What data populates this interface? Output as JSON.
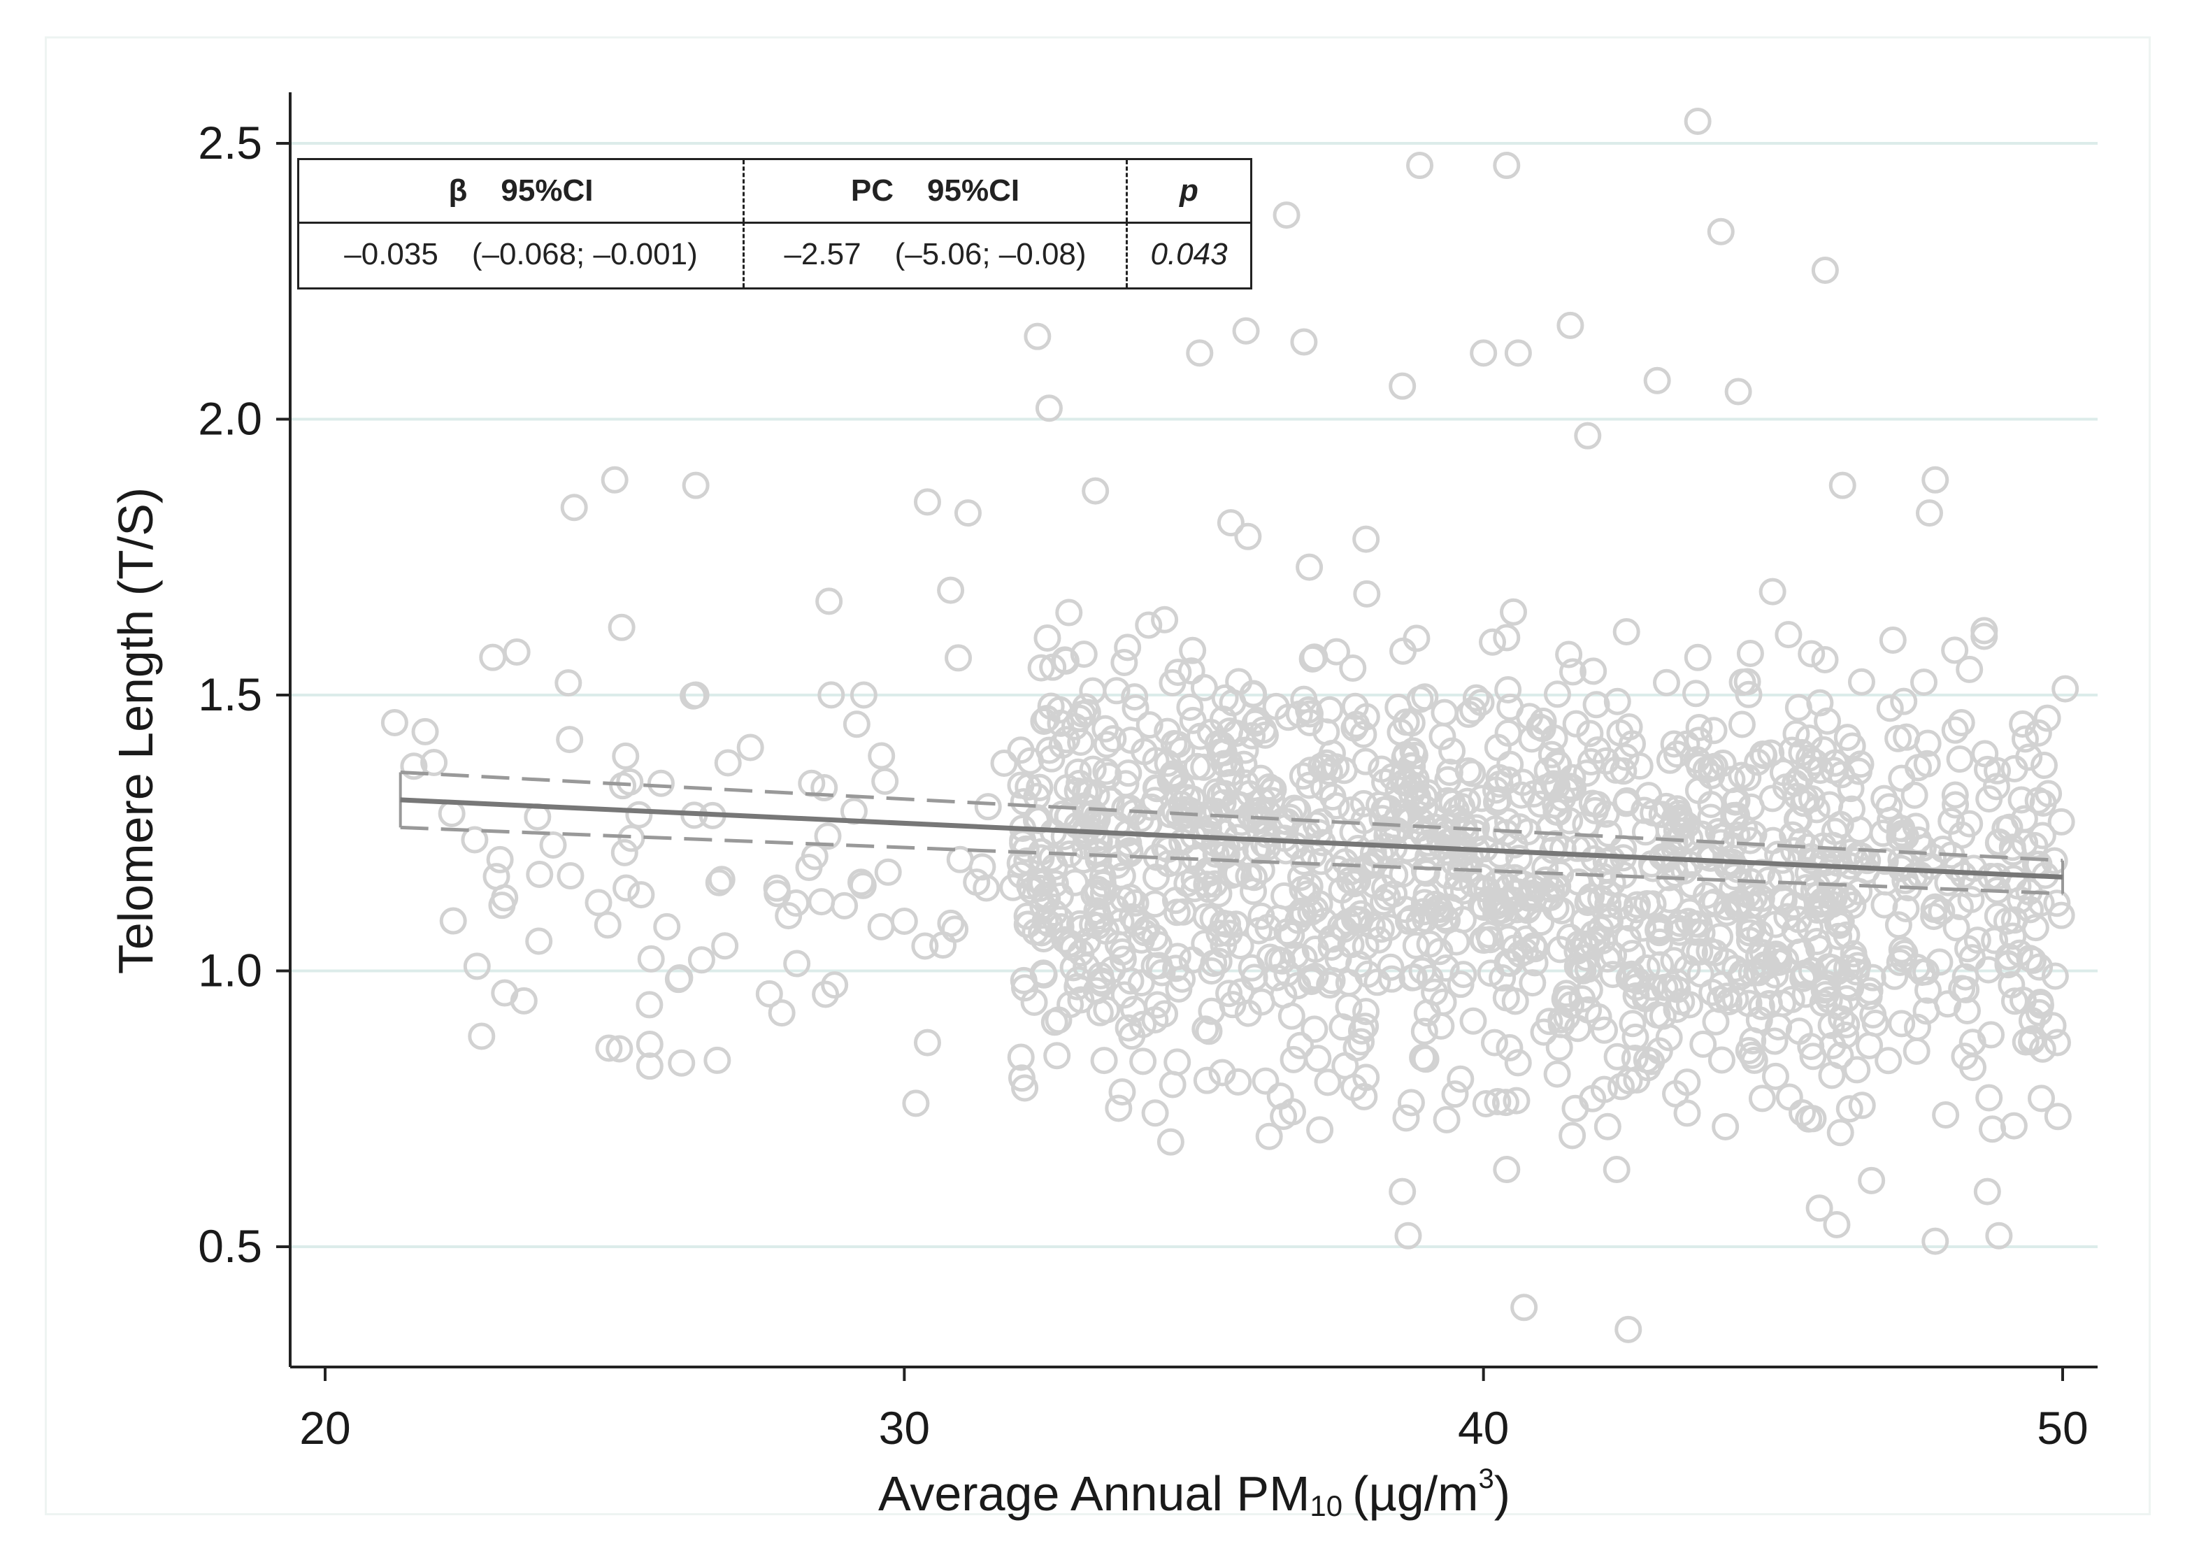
{
  "chart_data": {
    "type": "scatter",
    "title": "",
    "xlabel": "Average Annual PM",
    "xlabel_subscript": "10",
    "xlabel_unit": "(µg/m",
    "xlabel_superscript": "3",
    "xlabel_close": ")",
    "ylabel": "Telomere Length (T/S)",
    "xlim": [
      19.4,
      50.6
    ],
    "ylim": [
      0.3,
      2.6
    ],
    "x_ticks": [
      20,
      30,
      40,
      50
    ],
    "y_ticks": [
      0.5,
      1.0,
      1.5,
      2.0,
      2.5
    ],
    "x_tick_labels": [
      "20",
      "30",
      "40",
      "50"
    ],
    "y_tick_labels": [
      "0.5",
      "1.0",
      "1.5",
      "2.0",
      "2.5"
    ],
    "grid": true,
    "n_points_shown": 1500,
    "outlier_points": [
      {
        "x": 21.2,
        "y": 1.45
      },
      {
        "x": 23.1,
        "y": 0.96
      },
      {
        "x": 24.3,
        "y": 1.84
      },
      {
        "x": 24.9,
        "y": 0.86
      },
      {
        "x": 25.0,
        "y": 1.89
      },
      {
        "x": 25.8,
        "y": 1.34
      },
      {
        "x": 25.9,
        "y": 1.08
      },
      {
        "x": 26.4,
        "y": 1.88
      },
      {
        "x": 26.5,
        "y": 1.02
      },
      {
        "x": 26.4,
        "y": 1.5
      },
      {
        "x": 26.8,
        "y": 1.16
      },
      {
        "x": 27.8,
        "y": 1.15
      },
      {
        "x": 28.0,
        "y": 1.1
      },
      {
        "x": 28.4,
        "y": 1.34
      },
      {
        "x": 28.7,
        "y": 1.67
      },
      {
        "x": 29.3,
        "y": 1.5
      },
      {
        "x": 29.6,
        "y": 1.08
      },
      {
        "x": 30.0,
        "y": 1.09
      },
      {
        "x": 30.2,
        "y": 0.76
      },
      {
        "x": 30.4,
        "y": 0.87
      },
      {
        "x": 30.4,
        "y": 1.85
      },
      {
        "x": 30.8,
        "y": 1.69
      },
      {
        "x": 31.1,
        "y": 1.83
      },
      {
        "x": 32.3,
        "y": 2.15
      },
      {
        "x": 32.5,
        "y": 2.02
      },
      {
        "x": 33.3,
        "y": 1.87
      },
      {
        "x": 35.1,
        "y": 2.12
      },
      {
        "x": 35.9,
        "y": 2.16
      },
      {
        "x": 36.6,
        "y": 2.37
      },
      {
        "x": 36.9,
        "y": 2.14
      },
      {
        "x": 38.9,
        "y": 2.46
      },
      {
        "x": 38.6,
        "y": 2.06
      },
      {
        "x": 40.0,
        "y": 2.12
      },
      {
        "x": 40.4,
        "y": 2.46
      },
      {
        "x": 40.6,
        "y": 2.12
      },
      {
        "x": 41.5,
        "y": 2.17
      },
      {
        "x": 41.8,
        "y": 1.97
      },
      {
        "x": 43.0,
        "y": 2.07
      },
      {
        "x": 43.7,
        "y": 2.54
      },
      {
        "x": 44.1,
        "y": 2.34
      },
      {
        "x": 44.4,
        "y": 2.05
      },
      {
        "x": 45.9,
        "y": 2.27
      },
      {
        "x": 46.2,
        "y": 1.88
      },
      {
        "x": 47.7,
        "y": 1.83
      },
      {
        "x": 47.8,
        "y": 1.89
      },
      {
        "x": 38.6,
        "y": 0.6
      },
      {
        "x": 38.7,
        "y": 0.52
      },
      {
        "x": 40.7,
        "y": 0.39
      },
      {
        "x": 42.5,
        "y": 0.35
      },
      {
        "x": 42.3,
        "y": 0.64
      },
      {
        "x": 40.4,
        "y": 0.64
      },
      {
        "x": 45.8,
        "y": 0.57
      },
      {
        "x": 46.1,
        "y": 0.54
      },
      {
        "x": 47.8,
        "y": 0.51
      },
      {
        "x": 48.9,
        "y": 0.52
      },
      {
        "x": 48.7,
        "y": 0.6
      },
      {
        "x": 34.6,
        "y": 0.69
      },
      {
        "x": 36.3,
        "y": 0.7
      },
      {
        "x": 46.7,
        "y": 0.62
      }
    ],
    "fit_line": {
      "x": [
        21.3,
        50.0
      ],
      "y": [
        1.31,
        1.17
      ],
      "ci_lower": [
        1.26,
        1.14
      ],
      "ci_upper": [
        1.36,
        1.2
      ]
    },
    "legend": null
  },
  "stats_table": {
    "headers": {
      "beta": "β",
      "ci1": "95%CI",
      "pc": "PC",
      "ci2": "95%CI",
      "p": "p"
    },
    "values": {
      "beta": "–0.035",
      "ci1": "(–0.068; –0.001)",
      "pc": "–2.57",
      "ci2": "(–5.06; –0.08)",
      "p": "0.043"
    }
  },
  "colors": {
    "points": "#d2d2d2",
    "fit_line": "#777777",
    "ci_line": "#999999",
    "grid": "#dcecea",
    "axis": "#222222"
  }
}
